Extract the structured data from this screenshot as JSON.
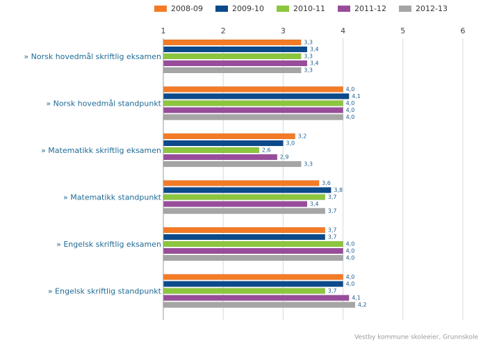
{
  "chart_data": {
    "type": "bar",
    "orientation": "horizontal",
    "categories": [
      "» Norsk hovedmål skriftlig eksamen",
      "» Norsk hovedmål standpunkt",
      "» Matematikk skriftlig eksamen",
      "» Matematikk standpunkt",
      "» Engelsk skriftlig eksamen",
      "» Engelsk skriftlig standpunkt"
    ],
    "series": [
      {
        "name": "2008-09",
        "color": "#f47b26",
        "values": [
          3.3,
          4.0,
          3.2,
          3.6,
          3.7,
          4.0
        ],
        "value_labels": [
          "3,3",
          "4,0",
          "3,2",
          "3,6",
          "3,7",
          "4,0"
        ]
      },
      {
        "name": "2009-10",
        "color": "#0b4a8b",
        "values": [
          3.4,
          4.1,
          3.0,
          3.8,
          3.7,
          4.0
        ],
        "value_labels": [
          "3,4",
          "4,1",
          "3,0",
          "3,8",
          "3,7",
          "4,0"
        ]
      },
      {
        "name": "2010-11",
        "color": "#8cc63f",
        "values": [
          3.3,
          4.0,
          2.6,
          3.7,
          4.0,
          3.7
        ],
        "value_labels": [
          "3,3",
          "4,0",
          "2,6",
          "3,7",
          "4,0",
          "3,7"
        ]
      },
      {
        "name": "2011-12",
        "color": "#984d9b",
        "values": [
          3.4,
          4.0,
          2.9,
          3.4,
          4.0,
          4.1
        ],
        "value_labels": [
          "3,4",
          "4,0",
          "2,9",
          "3,4",
          "4,0",
          "4,1"
        ]
      },
      {
        "name": "2012-13",
        "color": "#a5a5a5",
        "values": [
          3.3,
          4.0,
          3.3,
          3.7,
          4.0,
          4.2
        ],
        "value_labels": [
          "3,3",
          "4,0",
          "3,3",
          "3,7",
          "4,0",
          "4,2"
        ]
      }
    ],
    "xlim": [
      1,
      6
    ],
    "xticks": [
      1,
      2,
      3,
      4,
      5,
      6
    ],
    "grid": true,
    "legend": "top",
    "source": "Vestby kommune skoleeier, Grunnskole"
  }
}
